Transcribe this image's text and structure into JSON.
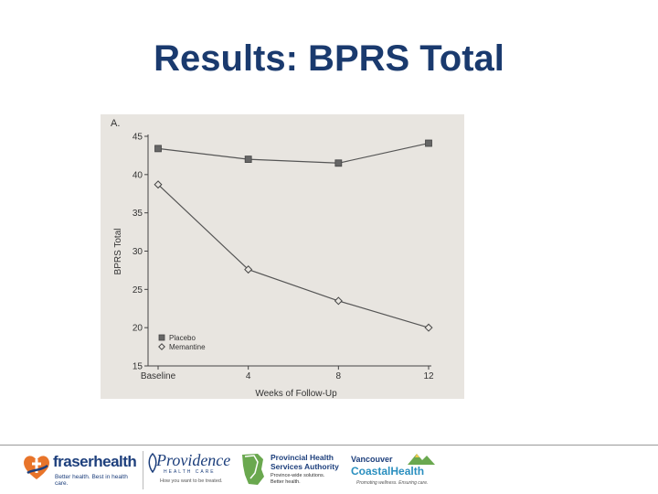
{
  "slide": {
    "title": "Results: BPRS Total"
  },
  "chart_data": {
    "type": "line",
    "panel_label": "A.",
    "x": [
      "Baseline",
      "4",
      "8",
      "12"
    ],
    "x_numeric": [
      0,
      4,
      8,
      12
    ],
    "xlabel": "Weeks of Follow-Up",
    "ylabel": "BPRS Total",
    "ylim": [
      15,
      45
    ],
    "yticks": [
      "15",
      "20",
      "25",
      "30",
      "35",
      "40",
      "45"
    ],
    "grid": false,
    "legend_position": "bottom-left",
    "series": [
      {
        "name": "Placebo",
        "marker": "square",
        "color": "#555555",
        "values": [
          43.4,
          42.0,
          41.5,
          44.1
        ]
      },
      {
        "name": "Memantine",
        "marker": "diamond",
        "color": "#555555",
        "values": [
          38.7,
          27.6,
          23.5,
          20.0
        ]
      }
    ]
  },
  "footer": {
    "fraser": {
      "name": "fraserhealth",
      "tagline": "Better health. Best in health care."
    },
    "providence": {
      "name": "Providence",
      "sub": "HEALTH CARE",
      "tagline": "How you want to be treated."
    },
    "phsa": {
      "name_line1": "Provincial Health",
      "name_line2": "Services Authority",
      "tag_line1": "Province-wide solutions.",
      "tag_line2": "Better health."
    },
    "vch": {
      "line1": "Vancouver",
      "line2": "CoastalHealth",
      "tagline": "Promoting wellness. Ensuring care."
    },
    "colors": {
      "navy": "#1d3f7c",
      "orange": "#e8742a",
      "teal": "#2a8fbf",
      "green": "#6aa84f"
    }
  }
}
